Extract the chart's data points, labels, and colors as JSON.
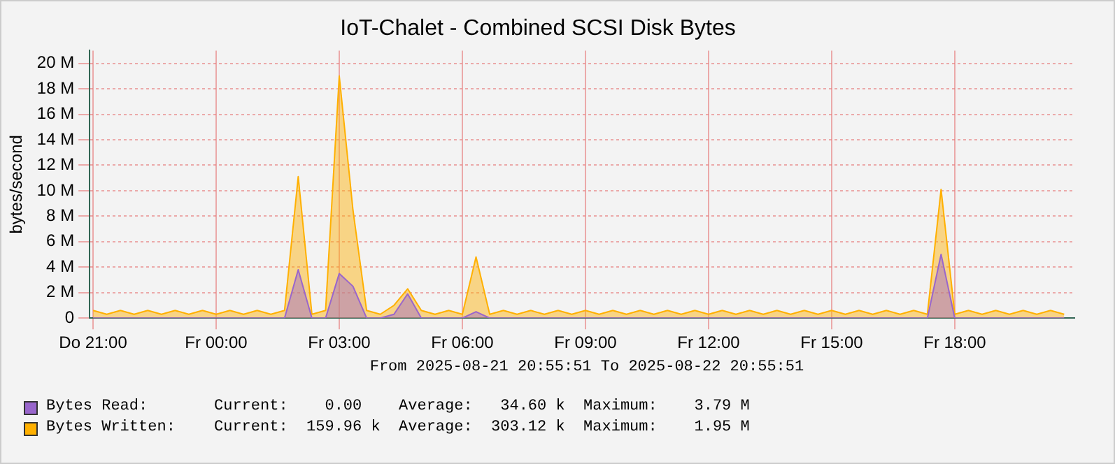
{
  "chart_data": {
    "type": "area",
    "title": "IoT-Chalet - Combined SCSI Disk Bytes",
    "ylabel": "bytes/second",
    "x": [
      "2025-08-21T21:00",
      "2025-08-21T21:20",
      "2025-08-21T21:40",
      "2025-08-21T22:00",
      "2025-08-21T22:20",
      "2025-08-21T22:40",
      "2025-08-21T23:00",
      "2025-08-21T23:20",
      "2025-08-21T23:40",
      "2025-08-22T00:00",
      "2025-08-22T00:20",
      "2025-08-22T00:40",
      "2025-08-22T01:00",
      "2025-08-22T01:20",
      "2025-08-22T01:40",
      "2025-08-22T02:00",
      "2025-08-22T02:20",
      "2025-08-22T02:40",
      "2025-08-22T03:00",
      "2025-08-22T03:20",
      "2025-08-22T03:40",
      "2025-08-22T04:00",
      "2025-08-22T04:20",
      "2025-08-22T04:40",
      "2025-08-22T05:00",
      "2025-08-22T05:20",
      "2025-08-22T05:40",
      "2025-08-22T06:00",
      "2025-08-22T06:20",
      "2025-08-22T06:40",
      "2025-08-22T07:00",
      "2025-08-22T07:20",
      "2025-08-22T07:40",
      "2025-08-22T08:00",
      "2025-08-22T08:20",
      "2025-08-22T08:40",
      "2025-08-22T09:00",
      "2025-08-22T09:20",
      "2025-08-22T09:40",
      "2025-08-22T10:00",
      "2025-08-22T10:20",
      "2025-08-22T10:40",
      "2025-08-22T11:00",
      "2025-08-22T11:20",
      "2025-08-22T11:40",
      "2025-08-22T12:00",
      "2025-08-22T12:20",
      "2025-08-22T12:40",
      "2025-08-22T13:00",
      "2025-08-22T13:20",
      "2025-08-22T13:40",
      "2025-08-22T14:00",
      "2025-08-22T14:20",
      "2025-08-22T14:40",
      "2025-08-22T15:00",
      "2025-08-22T15:20",
      "2025-08-22T15:40",
      "2025-08-22T16:00",
      "2025-08-22T16:20",
      "2025-08-22T16:40",
      "2025-08-22T17:00",
      "2025-08-22T17:20",
      "2025-08-22T17:40",
      "2025-08-22T18:00",
      "2025-08-22T18:20",
      "2025-08-22T18:40",
      "2025-08-22T19:00",
      "2025-08-22T19:20",
      "2025-08-22T19:40",
      "2025-08-22T20:00",
      "2025-08-22T20:20",
      "2025-08-22T20:40"
    ],
    "series": [
      {
        "name": "Bytes Read:",
        "color": "#9966cc",
        "values": [
          0,
          0,
          0,
          0,
          0,
          0,
          0,
          0,
          0,
          0,
          0,
          0,
          0,
          0,
          0,
          3.8,
          0,
          0,
          3.5,
          2.5,
          0,
          0,
          0.3,
          1.9,
          0,
          0,
          0,
          0,
          0.5,
          0,
          0,
          0,
          0,
          0,
          0,
          0,
          0,
          0,
          0,
          0,
          0,
          0,
          0,
          0,
          0,
          0,
          0,
          0,
          0,
          0,
          0,
          0,
          0,
          0,
          0,
          0,
          0,
          0,
          0,
          0,
          0,
          0,
          5,
          0,
          0,
          0,
          0,
          0,
          0,
          0,
          0,
          0
        ]
      },
      {
        "name": "Bytes Written:",
        "color": "#ffb000",
        "values": [
          0.6,
          0.3,
          0.6,
          0.3,
          0.6,
          0.3,
          0.6,
          0.3,
          0.6,
          0.3,
          0.6,
          0.3,
          0.6,
          0.3,
          0.6,
          11.1,
          0.3,
          0.6,
          19,
          8.5,
          0.6,
          0.3,
          1,
          2.3,
          0.6,
          0.3,
          0.6,
          0.3,
          4.8,
          0.3,
          0.6,
          0.3,
          0.6,
          0.3,
          0.6,
          0.3,
          0.6,
          0.3,
          0.6,
          0.3,
          0.6,
          0.3,
          0.6,
          0.3,
          0.6,
          0.3,
          0.6,
          0.3,
          0.6,
          0.3,
          0.6,
          0.3,
          0.6,
          0.3,
          0.6,
          0.3,
          0.6,
          0.3,
          0.6,
          0.3,
          0.6,
          0.3,
          10.1,
          0.3,
          0.6,
          0.3,
          0.6,
          0.3,
          0.6,
          0.3,
          0.6,
          0.3
        ]
      }
    ],
    "xlim": [
      "2025-08-21T20:55",
      "2025-08-22T20:55"
    ],
    "xticks": [
      {
        "value": "2025-08-21T21:00",
        "label": "Do 21:00"
      },
      {
        "value": "2025-08-22T00:00",
        "label": "Fr 00:00"
      },
      {
        "value": "2025-08-22T03:00",
        "label": "Fr 03:00"
      },
      {
        "value": "2025-08-22T06:00",
        "label": "Fr 06:00"
      },
      {
        "value": "2025-08-22T09:00",
        "label": "Fr 09:00"
      },
      {
        "value": "2025-08-22T12:00",
        "label": "Fr 12:00"
      },
      {
        "value": "2025-08-22T15:00",
        "label": "Fr 15:00"
      },
      {
        "value": "2025-08-22T18:00",
        "label": "Fr 18:00"
      }
    ],
    "ylim": [
      0,
      21
    ],
    "yticks": [
      0,
      {
        "value": 2,
        "label": "2 M"
      },
      {
        "value": 4,
        "label": "4 M"
      },
      {
        "value": 6,
        "label": "6 M"
      },
      {
        "value": 8,
        "label": "8 M"
      },
      {
        "value": 10,
        "label": "10 M"
      },
      {
        "value": 12,
        "label": "12 M"
      },
      {
        "value": 14,
        "label": "14 M"
      },
      {
        "value": 16,
        "label": "16 M"
      },
      {
        "value": 18,
        "label": "18 M"
      },
      {
        "value": 20,
        "label": "20 M"
      }
    ],
    "grid": true,
    "legend": "bottom",
    "annotations": [
      "From 2025-08-21 20:55:51 To 2025-08-22 20:55:51",
      "Current:    0.00    Average:   34.60 k  Maximum:    3.79 M",
      "Current:  159.96 k  Average:  303.12 k  Maximum:    1.95 M"
    ]
  }
}
